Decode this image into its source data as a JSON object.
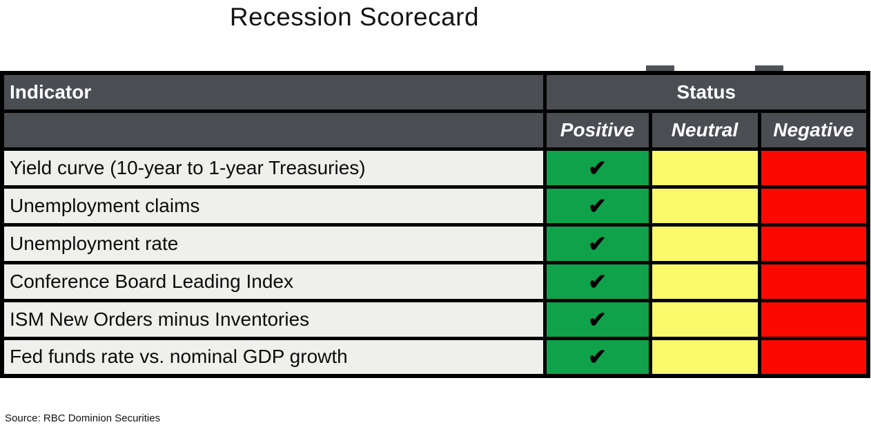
{
  "title": "Recession Scorecard",
  "table": {
    "indicator_header": "Indicator",
    "status_header": "Status",
    "status_columns": [
      "Positive",
      "Neutral",
      "Negative"
    ],
    "check_glyph": "✔",
    "rows": [
      {
        "indicator": "Yield curve (10-year to 1-year Treasuries)",
        "status": "positive"
      },
      {
        "indicator": "Unemployment claims",
        "status": "positive"
      },
      {
        "indicator": "Unemployment rate",
        "status": "positive"
      },
      {
        "indicator": "Conference Board Leading Index",
        "status": "positive"
      },
      {
        "indicator": "ISM New Orders minus Inventories",
        "status": "positive"
      },
      {
        "indicator": "Fed funds rate vs. nominal GDP growth",
        "status": "positive"
      }
    ]
  },
  "source": "Source: RBC Dominion Securities",
  "colors": {
    "positive_green": "#0fa24b",
    "neutral_yellow": "#f9f96b",
    "negative_red": "#fb0900",
    "header_grey": "#4a4d52",
    "row_background": "#efefec",
    "border_black": "#000000"
  },
  "chart_data": {
    "type": "table",
    "title": "Recession Scorecard",
    "columns": [
      "Indicator",
      "Positive",
      "Neutral",
      "Negative"
    ],
    "rows": [
      [
        "Yield curve (10-year to 1-year Treasuries)",
        "✔",
        "",
        ""
      ],
      [
        "Unemployment claims",
        "✔",
        "",
        ""
      ],
      [
        "Unemployment rate",
        "✔",
        "",
        ""
      ],
      [
        "Conference Board Leading Index",
        "✔",
        "",
        ""
      ],
      [
        "ISM New Orders minus Inventories",
        "✔",
        "",
        ""
      ],
      [
        "Fed funds rate vs. nominal GDP growth",
        "✔",
        "",
        ""
      ]
    ],
    "legend": "All six indicators currently flagged Positive (green check); Neutral and Negative cells empty",
    "source": "Source: RBC Dominion Securities"
  }
}
